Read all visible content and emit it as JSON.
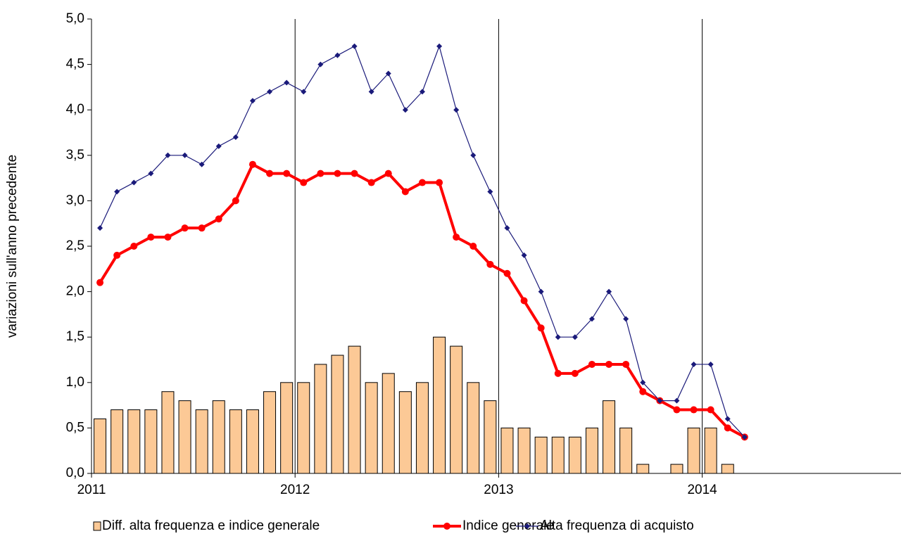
{
  "chart_data": {
    "type": "bar_line",
    "y_label": "variazioni sull'anno precedente",
    "categories": [
      null,
      null,
      null,
      null,
      null,
      null,
      null,
      null,
      null,
      null,
      null,
      null,
      null,
      null,
      null,
      null,
      null,
      null,
      null,
      null,
      null,
      null,
      null,
      null,
      null,
      null,
      null,
      null,
      null,
      null,
      null,
      null,
      null,
      null,
      null,
      null,
      null,
      null,
      null,
      null,
      null,
      null,
      null,
      null,
      null,
      null,
      null,
      null
    ],
    "x_labels": [
      "2011",
      "2012",
      "2013",
      "2014"
    ],
    "series": [
      {
        "name": "Diff. alta frequenza e indice generale",
        "type": "bar",
        "color": "#fcc996",
        "values": [
          0.6,
          0.7,
          0.7,
          0.7,
          0.9,
          0.8,
          0.7,
          0.8,
          0.7,
          0.7,
          0.9,
          1.0,
          1.0,
          1.2,
          1.3,
          1.4,
          1.0,
          1.1,
          0.9,
          1.0,
          1.5,
          1.4,
          1.0,
          0.8,
          0.5,
          0.5,
          0.4,
          0.4,
          0.4,
          0.5,
          0.8,
          0.5,
          0.1,
          0,
          0.1,
          0.5,
          0.5,
          0.1,
          0,
          null,
          null,
          null,
          null,
          null,
          null,
          null,
          null,
          null
        ]
      },
      {
        "name": "Indice generale",
        "type": "line",
        "color": "#ff0000",
        "values": [
          2.1,
          2.4,
          2.5,
          2.6,
          2.6,
          2.7,
          2.7,
          2.8,
          3.0,
          3.4,
          3.3,
          3.3,
          3.2,
          3.3,
          3.3,
          3.3,
          3.2,
          3.3,
          3.1,
          3.2,
          3.2,
          2.6,
          2.5,
          2.3,
          2.2,
          1.9,
          1.6,
          1.1,
          1.1,
          1.2,
          1.2,
          1.2,
          0.9,
          0.8,
          0.7,
          0.7,
          0.7,
          0.5,
          0.4,
          null,
          null,
          null,
          null,
          null,
          null,
          null,
          null,
          null
        ]
      },
      {
        "name": "Alta frequenza di acquisto",
        "type": "line",
        "color": "#1a1a7a",
        "values": [
          2.7,
          3.1,
          3.2,
          3.3,
          3.5,
          3.5,
          3.4,
          3.6,
          3.7,
          4.1,
          4.2,
          4.3,
          4.2,
          4.5,
          4.6,
          4.7,
          4.2,
          4.4,
          4.0,
          4.2,
          4.7,
          4.0,
          3.5,
          3.1,
          2.7,
          2.4,
          2.0,
          1.5,
          1.5,
          1.7,
          2.0,
          1.7,
          1.0,
          0.8,
          0.8,
          1.2,
          1.2,
          0.6,
          0.4,
          null,
          null,
          null,
          null,
          null,
          null,
          null,
          null,
          null
        ]
      }
    ],
    "ylim": [
      0,
      5
    ],
    "yticks": [
      {
        "value": 0,
        "label": "0,0"
      },
      {
        "value": 0.5,
        "label": "0,5"
      },
      {
        "value": 1,
        "label": "1,0"
      },
      {
        "value": 1.5,
        "label": "1,5"
      },
      {
        "value": 2,
        "label": "2,0"
      },
      {
        "value": 2.5,
        "label": "2,5"
      },
      {
        "value": 3,
        "label": "3,0"
      },
      {
        "value": 3.5,
        "label": "3,5"
      },
      {
        "value": 4,
        "label": "4,0"
      },
      {
        "value": 4.5,
        "label": "4,5"
      },
      {
        "value": 5,
        "label": "5,0"
      }
    ],
    "grid": false
  }
}
